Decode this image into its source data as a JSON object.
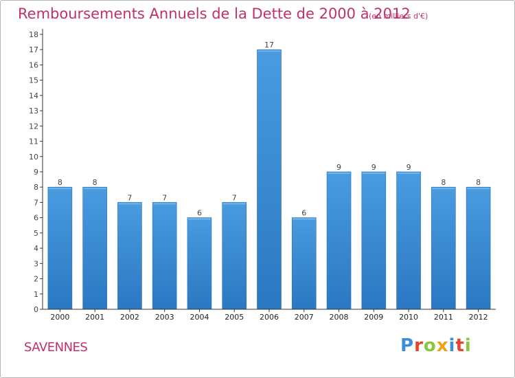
{
  "header": {
    "title": "Remboursements Annuels de la Dette de 2000 à 2012",
    "subtitle": "(en milliers d'€)"
  },
  "footer": {
    "town": "SAVENNES",
    "logo_letters": [
      "P",
      "r",
      "o",
      "x",
      "i",
      "t",
      "i"
    ],
    "logo_colors": [
      "#3a8fd8",
      "#e8452c",
      "#8bc43f",
      "#f0a21b",
      "#3a8fd8",
      "#e8452c",
      "#8bc43f"
    ]
  },
  "chart_data": {
    "type": "bar",
    "title": "Remboursements Annuels de la Dette de 2000 à 2012",
    "subtitle": "(en milliers d'€)",
    "xlabel": "",
    "ylabel": "",
    "categories": [
      "2000",
      "2001",
      "2002",
      "2003",
      "2004",
      "2005",
      "2006",
      "2007",
      "2008",
      "2009",
      "2010",
      "2011",
      "2012"
    ],
    "values": [
      8,
      8,
      7,
      7,
      6,
      7,
      17,
      6,
      9,
      9,
      9,
      8,
      8
    ],
    "ylim": [
      0,
      18
    ],
    "yticks": [
      0,
      1,
      2,
      3,
      4,
      5,
      6,
      7,
      8,
      9,
      10,
      11,
      12,
      13,
      14,
      15,
      16,
      17,
      18
    ],
    "grid": false,
    "legend": "none",
    "bar_color": "#4a9be0",
    "bar_color_dark": "#2a78c2",
    "data_labels": true
  }
}
